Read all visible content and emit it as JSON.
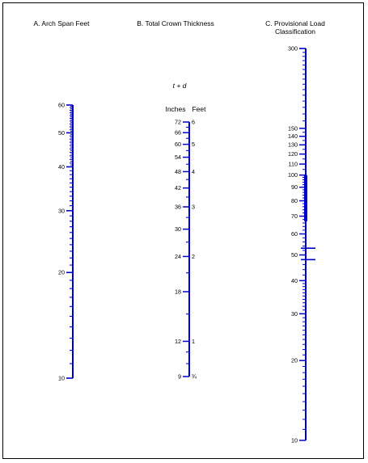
{
  "colors": {
    "scale": "#0000cc",
    "text": "#000000",
    "border": "#000000"
  },
  "headers": {
    "a": "A. Arch Span Feet",
    "b": "B. Total Crown Thickness",
    "c_line1": "C. Provisional Load",
    "c_line2": "Classification"
  },
  "formula": "t + d",
  "units": {
    "inches": "Inches",
    "feet": "Feet"
  },
  "scale_a": {
    "min": 10,
    "max": 60,
    "labels": [
      {
        "v": 10,
        "t": "10"
      },
      {
        "v": 20,
        "t": "20"
      },
      {
        "v": 30,
        "t": "30"
      },
      {
        "v": 40,
        "t": "40"
      },
      {
        "v": 50,
        "t": "50"
      },
      {
        "v": 60,
        "t": "60"
      }
    ]
  },
  "scale_b": {
    "min": 9,
    "max": 72,
    "inch_labels": [
      {
        "v": 9,
        "t": "9"
      },
      {
        "v": 12,
        "t": "12"
      },
      {
        "v": 18,
        "t": "18"
      },
      {
        "v": 24,
        "t": "24"
      },
      {
        "v": 30,
        "t": "30"
      },
      {
        "v": 36,
        "t": "36"
      },
      {
        "v": 42,
        "t": "42"
      },
      {
        "v": 48,
        "t": "48"
      },
      {
        "v": 54,
        "t": "54"
      },
      {
        "v": 60,
        "t": "60"
      },
      {
        "v": 66,
        "t": "66"
      },
      {
        "v": 72,
        "t": "72"
      }
    ],
    "feet_labels": [
      {
        "v": 9,
        "t": "¾"
      },
      {
        "v": 12,
        "t": "1"
      },
      {
        "v": 24,
        "t": "2"
      },
      {
        "v": 36,
        "t": "3"
      },
      {
        "v": 48,
        "t": "4"
      },
      {
        "v": 60,
        "t": "5"
      },
      {
        "v": 72,
        "t": "6"
      }
    ]
  },
  "scale_c": {
    "min": 10,
    "max": 300,
    "labels": [
      {
        "v": 10,
        "t": "10"
      },
      {
        "v": 20,
        "t": "20"
      },
      {
        "v": 30,
        "t": "30"
      },
      {
        "v": 40,
        "t": "40"
      },
      {
        "v": 50,
        "t": "50"
      },
      {
        "v": 60,
        "t": "60"
      },
      {
        "v": 70,
        "t": "70"
      },
      {
        "v": 80,
        "t": "80"
      },
      {
        "v": 90,
        "t": "90"
      },
      {
        "v": 100,
        "t": "100"
      },
      {
        "v": 110,
        "t": "110"
      },
      {
        "v": 120,
        "t": "120"
      },
      {
        "v": 130,
        "t": "130"
      },
      {
        "v": 140,
        "t": "140"
      },
      {
        "v": 150,
        "t": "150"
      },
      {
        "v": 300,
        "t": "300"
      }
    ],
    "highlight_range": [
      67,
      100
    ],
    "markers": [
      53,
      48
    ]
  }
}
